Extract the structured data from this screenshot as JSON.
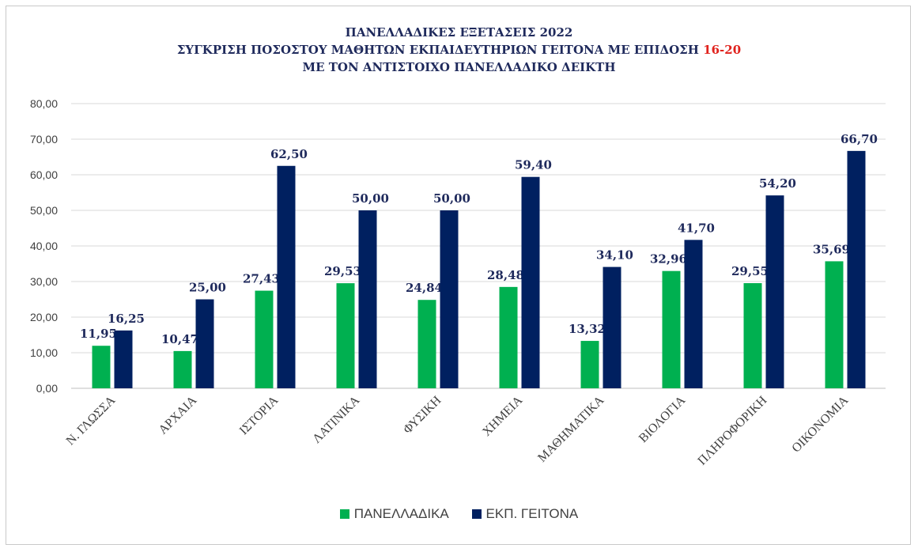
{
  "title": {
    "line1": "ΠΑΝΕΛΛΑΔΙΚΕΣ ΕΞΕΤΑΣΕΙΣ 2022",
    "line2_prefix": "ΣΥΓΚΡΙΣΗ ΠΟΣΟΣΤΟΥ ΜΑΘΗΤΩΝ ΕΚΠΑΙΔΕΥΤΗΡΙΩΝ ΓΕΙΤΟΝΑ ΜΕ ΕΠΙΔΟΣΗ ",
    "line2_highlight": "16-20",
    "line3": "ΜΕ ΤΟΝ ΑΝΤΙΣΤΟΙΧΟ ΠΑΝΕΛΛΑΔΙΚΟ ΔΕΙΚΤΗ"
  },
  "colors": {
    "highlight": "#e0211c",
    "title": "#1f2a5c",
    "grid": "#d9d9d9"
  },
  "chart_data": {
    "type": "bar",
    "categories": [
      "Ν. ΓΛΩΣΣΑ",
      "ΑΡΧΑΙΑ",
      "ΙΣΤΟΡΙΑ",
      "ΛΑΤΙΝΙΚΑ",
      "ΦΥΣΙΚΗ",
      "ΧΗΜΕΙΑ",
      "ΜΑΘΗΜΑΤΙΚΑ",
      "ΒΙΟΛΟΓΙΑ",
      "ΠΛΗΡΟΦΟΡΙΚΗ",
      "ΟΙΚΟΝΟΜΙΑ"
    ],
    "series": [
      {
        "name": "ΠΑΝΕΛΛΑΔΙΚΑ",
        "color": "#00b050",
        "values": [
          11.95,
          10.47,
          27.43,
          29.53,
          24.84,
          28.48,
          13.32,
          32.96,
          29.55,
          35.69
        ],
        "labels": [
          "11,95",
          "10,47",
          "27,43",
          "29,53",
          "24,84",
          "28,48",
          "13,32",
          "32,96",
          "29,55",
          "35,69"
        ]
      },
      {
        "name": "ΕΚΠ. ΓΕΙΤΟΝΑ",
        "color": "#002060",
        "values": [
          16.25,
          25.0,
          62.5,
          50.0,
          50.0,
          59.4,
          34.1,
          41.7,
          54.2,
          66.7
        ],
        "labels": [
          "16,25",
          "25,00",
          "62,50",
          "50,00",
          "50,00",
          "59,40",
          "34,10",
          "41,70",
          "54,20",
          "66,70"
        ]
      }
    ],
    "ylim": [
      0,
      80
    ],
    "yticks": [
      "0,00",
      "10,00",
      "20,00",
      "30,00",
      "40,00",
      "50,00",
      "60,00",
      "70,00",
      "80,00"
    ],
    "grid": true,
    "legend_position": "bottom"
  }
}
